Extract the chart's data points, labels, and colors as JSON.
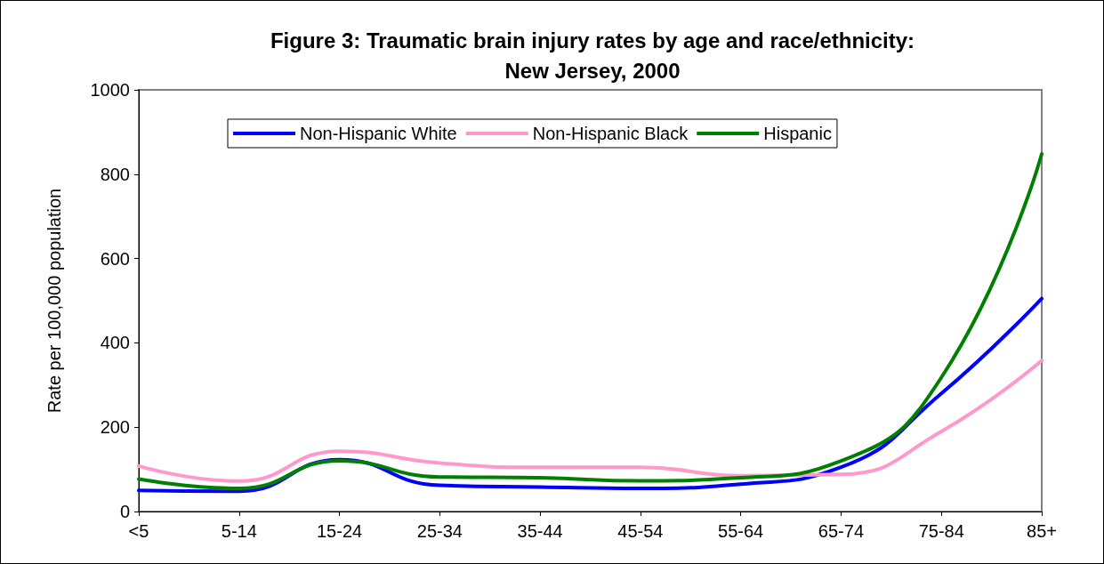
{
  "chart_data": {
    "type": "line",
    "title": "Figure 3: Traumatic brain injury rates by age and race/ethnicity:\nNew Jersey, 2000",
    "ylabel": "Rate per 100,000 population",
    "categories": [
      "<5",
      "5-14",
      "15-24",
      "25-34",
      "35-44",
      "45-54",
      "55-64",
      "65-74",
      "75-84",
      "85+"
    ],
    "series": [
      {
        "name": "Non-Hispanic White",
        "color": "#0000ff",
        "values": [
          50,
          48,
          123,
          62,
          58,
          55,
          65,
          105,
          280,
          505
        ]
      },
      {
        "name": "Non-Hispanic Black",
        "color": "#ff99cc",
        "values": [
          108,
          72,
          143,
          115,
          105,
          105,
          85,
          88,
          190,
          358
        ]
      },
      {
        "name": "Hispanic",
        "color": "#008000",
        "values": [
          77,
          55,
          120,
          82,
          80,
          73,
          80,
          120,
          318,
          848
        ]
      }
    ],
    "ylim": [
      0,
      1000
    ],
    "yticks": [
      0,
      200,
      400,
      600,
      800,
      1000
    ],
    "grid": false,
    "legend": "top",
    "marker": "none",
    "line_style": "solid"
  }
}
